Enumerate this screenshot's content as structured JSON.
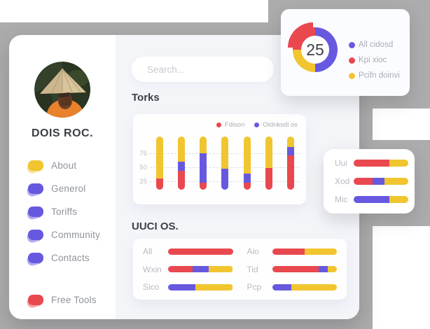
{
  "colors": {
    "red": "#e9484f",
    "yellow": "#f1c52f",
    "purple": "#6759df",
    "gray_bg": "#acacac"
  },
  "sidebar": {
    "profile_name": "DOIS ROC.",
    "items": [
      {
        "label": "About",
        "color": "yellow"
      },
      {
        "label": "Generol",
        "color": "purple"
      },
      {
        "label": "Toriffs",
        "color": "purple"
      },
      {
        "label": "Community",
        "color": "purple"
      },
      {
        "label": "Contacts",
        "color": "purple"
      }
    ],
    "footer_item": {
      "label": "Free Tools",
      "color": "red"
    }
  },
  "search": {
    "placeholder": "Search..."
  },
  "sections": {
    "torks_title": "Torks",
    "uuci_title": "UUCI OS."
  },
  "chart_data": [
    {
      "name": "kpi-donut",
      "type": "pie",
      "center_label": "25",
      "segments": [
        {
          "label": "All cidosd",
          "color": "purple",
          "pct": 50
        },
        {
          "label": "Kpi xioc",
          "color": "red",
          "pct": 25,
          "exploded": true
        },
        {
          "label": "Pcifn doinvi",
          "color": "yellow",
          "pct": 25
        }
      ],
      "arc_order_from_top_clockwise": [
        "All cidosd",
        "Pcifn doinvi",
        "Kpi xioc"
      ],
      "legend_position": "right"
    },
    {
      "name": "torks",
      "type": "bar",
      "title": "Torks",
      "stacked": true,
      "y_ticks": [
        75,
        50,
        25
      ],
      "grid": "dashed",
      "legend": [
        {
          "label": "Fdison",
          "color": "red"
        },
        {
          "label": "Oidnksdi os",
          "color": "purple"
        }
      ],
      "note": "7 unlabeled pill bars; segment values are % of bar height; yellow top segment is unlabeled remainder",
      "bars": [
        {
          "red": 21,
          "purple": 0,
          "yellow": 79
        },
        {
          "red": 36,
          "purple": 16,
          "yellow": 48
        },
        {
          "red": 13,
          "purple": 56,
          "yellow": 31
        },
        {
          "red": 0,
          "purple": 40,
          "yellow": 60
        },
        {
          "red": 13,
          "purple": 17,
          "yellow": 70
        },
        {
          "red": 41,
          "purple": 0,
          "yellow": 59
        },
        {
          "red": 64,
          "purple": 16,
          "yellow": 20
        }
      ]
    },
    {
      "name": "uuci-os",
      "type": "bar",
      "title": "UUCI OS.",
      "orientation": "horizontal",
      "columns": [
        [
          {
            "label": "All",
            "segments": [
              {
                "color": "red",
                "pct": 100
              }
            ]
          },
          {
            "label": "Wxin",
            "segments": [
              {
                "color": "red",
                "pct": 38
              },
              {
                "color": "purple",
                "pct": 25
              },
              {
                "color": "yellow",
                "pct": 37
              }
            ]
          },
          {
            "label": "Sico",
            "segments": [
              {
                "color": "purple",
                "pct": 42
              },
              {
                "color": "yellow",
                "pct": 58
              }
            ]
          }
        ],
        [
          {
            "label": "Aio",
            "segments": [
              {
                "color": "red",
                "pct": 50
              },
              {
                "color": "yellow",
                "pct": 50
              }
            ]
          },
          {
            "label": "Tid",
            "segments": [
              {
                "color": "red",
                "pct": 72
              },
              {
                "color": "purple",
                "pct": 14
              },
              {
                "color": "yellow",
                "pct": 14
              }
            ]
          },
          {
            "label": "Pcp",
            "segments": [
              {
                "color": "purple",
                "pct": 30
              },
              {
                "color": "yellow",
                "pct": 70
              }
            ]
          }
        ]
      ]
    },
    {
      "name": "mini-bars",
      "type": "bar",
      "orientation": "horizontal",
      "rows": [
        {
          "label": "Uui",
          "segments": [
            {
              "color": "red",
              "pct": 66
            },
            {
              "color": "yellow",
              "pct": 34
            }
          ]
        },
        {
          "label": "Xod",
          "segments": [
            {
              "color": "red",
              "pct": 34
            },
            {
              "color": "purple",
              "pct": 23
            },
            {
              "color": "yellow",
              "pct": 43
            }
          ]
        },
        {
          "label": "Mic",
          "segments": [
            {
              "color": "purple",
              "pct": 66
            },
            {
              "color": "yellow",
              "pct": 34
            }
          ]
        }
      ]
    }
  ]
}
